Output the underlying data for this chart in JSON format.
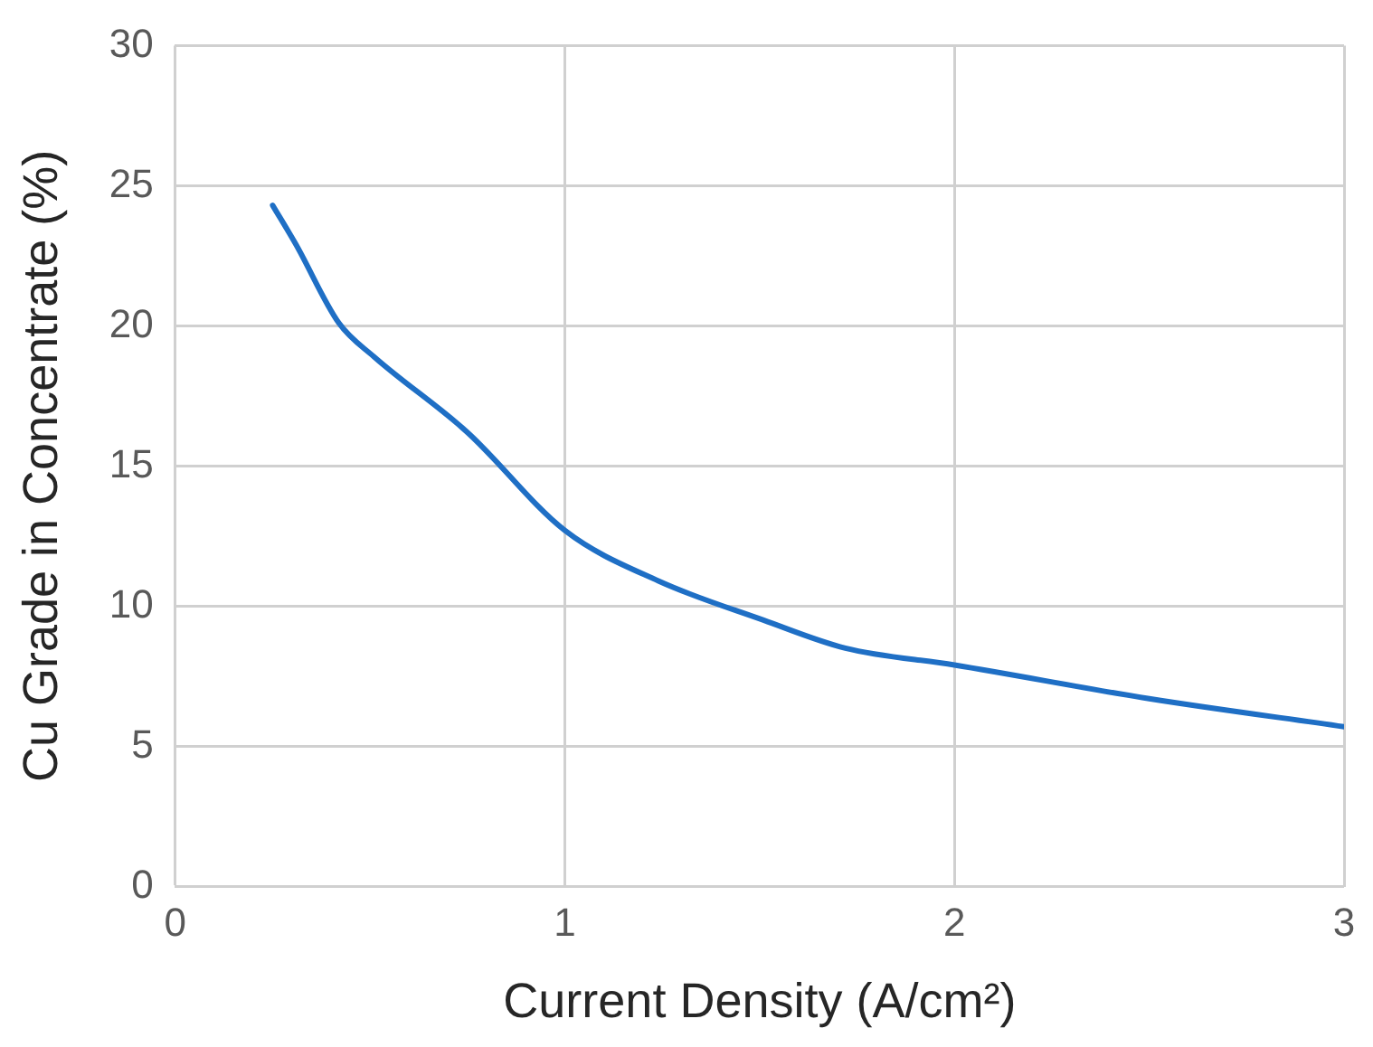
{
  "chart_data": {
    "type": "line",
    "xlabel": "Current Density (A/cm²)",
    "ylabel": "Cu Grade in Concentrate (%)",
    "series": [
      {
        "color": "#1f6fc5",
        "x": [
          0.25,
          0.31,
          0.42,
          0.51,
          0.75,
          1.0,
          1.24,
          1.51,
          1.72,
          2.0,
          2.5,
          3.0
        ],
        "values": [
          24.3,
          22.9,
          20.1,
          18.9,
          16.2,
          12.7,
          10.9,
          9.5,
          8.5,
          7.9,
          6.7,
          5.7
        ]
      }
    ],
    "xlim": [
      0,
      3
    ],
    "xticks": [
      0,
      1,
      2,
      3
    ],
    "ylim": [
      0,
      30
    ],
    "yticks": [
      0,
      5,
      10,
      15,
      20,
      25,
      30
    ],
    "grid": true,
    "legend": false,
    "marker": "none",
    "line_style": "solid"
  }
}
